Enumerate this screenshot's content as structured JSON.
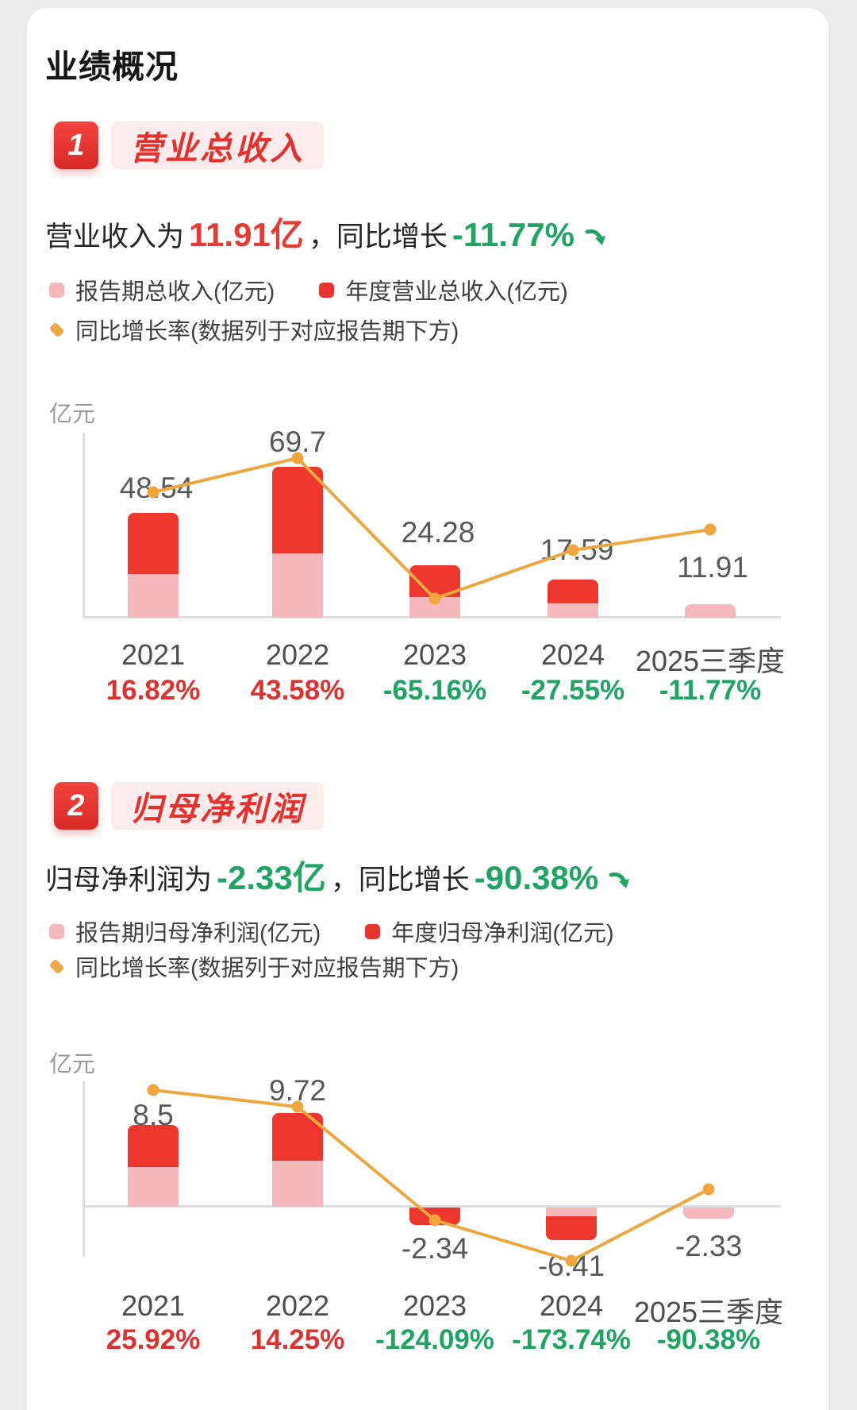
{
  "page_title": "业绩概况",
  "colors": {
    "accent_red": "#e3312d",
    "bar_red": "#ed372e",
    "bar_pink": "#f5b8bc",
    "line_orange": "#eda73f",
    "green": "#1fa463",
    "growth_positive": "#dd3330",
    "growth_negative": "#1fa463",
    "chip_bg": "#fdecec"
  },
  "sections": [
    {
      "badge": "1",
      "title": "营业总收入",
      "summary": {
        "prefix": "营业收入为",
        "value": "11.91亿",
        "value_color": "#e43c34",
        "connector": "，同比增长",
        "growth": "-11.77%",
        "growth_color": "#1fa463"
      },
      "legend": {
        "report": "报告期总收入(亿元)",
        "annual": "年度营业总收入(亿元)",
        "line": "同比增长率(数据列于对应报告期下方)"
      },
      "unit_label": "亿元"
    },
    {
      "badge": "2",
      "title": "归母净利润",
      "summary": {
        "prefix": "归母净利润为",
        "value": "-2.33亿",
        "value_color": "#1fa463",
        "connector": "，同比增长",
        "growth": "-90.38%",
        "growth_color": "#1fa463"
      },
      "legend": {
        "report": "报告期归母净利润(亿元)",
        "annual": "年度归母净利润(亿元)",
        "line": "同比增长率(数据列于对应报告期下方)"
      },
      "unit_label": "亿元"
    }
  ],
  "chart_data": [
    {
      "type": "bar+line",
      "title": "营业总收入",
      "ylabel": "亿元",
      "categories": [
        "2021",
        "2022",
        "2023",
        "2024",
        "2025三季度"
      ],
      "series": [
        {
          "name": "报告期总收入(亿元)",
          "role": "report-period-bar",
          "values": null
        },
        {
          "name": "年度营业总收入(亿元)",
          "role": "annual-bar",
          "values": [
            48.54,
            69.7,
            24.28,
            17.59,
            11.91
          ]
        },
        {
          "name": "同比增长率",
          "role": "growth-line",
          "unit": "%",
          "values": [
            16.82,
            43.58,
            -65.16,
            -27.55,
            -11.77
          ]
        }
      ],
      "bar_labels": [
        "48.54",
        "69.7",
        "24.28",
        "17.59",
        "11.91"
      ],
      "growth_labels": [
        "16.82%",
        "43.58%",
        "-65.16%",
        "-27.55%",
        "-11.77%"
      ],
      "legend_position": "top",
      "grid": false
    },
    {
      "type": "bar+line",
      "title": "归母净利润",
      "ylabel": "亿元",
      "categories": [
        "2021",
        "2022",
        "2023",
        "2024",
        "2025三季度"
      ],
      "series": [
        {
          "name": "报告期归母净利润(亿元)",
          "role": "report-period-bar",
          "values": null
        },
        {
          "name": "年度归母净利润(亿元)",
          "role": "annual-bar",
          "values": [
            8.5,
            9.72,
            -2.34,
            -6.41,
            -2.33
          ]
        },
        {
          "name": "同比增长率",
          "role": "growth-line",
          "unit": "%",
          "values": [
            25.92,
            14.25,
            -124.09,
            -173.74,
            -90.38
          ]
        }
      ],
      "bar_labels": [
        "8.5",
        "9.72",
        "-2.34",
        "-6.41",
        "-2.33"
      ],
      "growth_labels": [
        "25.92%",
        "14.25%",
        "-124.09%",
        "-173.74%",
        "-90.38%"
      ],
      "legend_position": "top",
      "grid": false
    }
  ]
}
